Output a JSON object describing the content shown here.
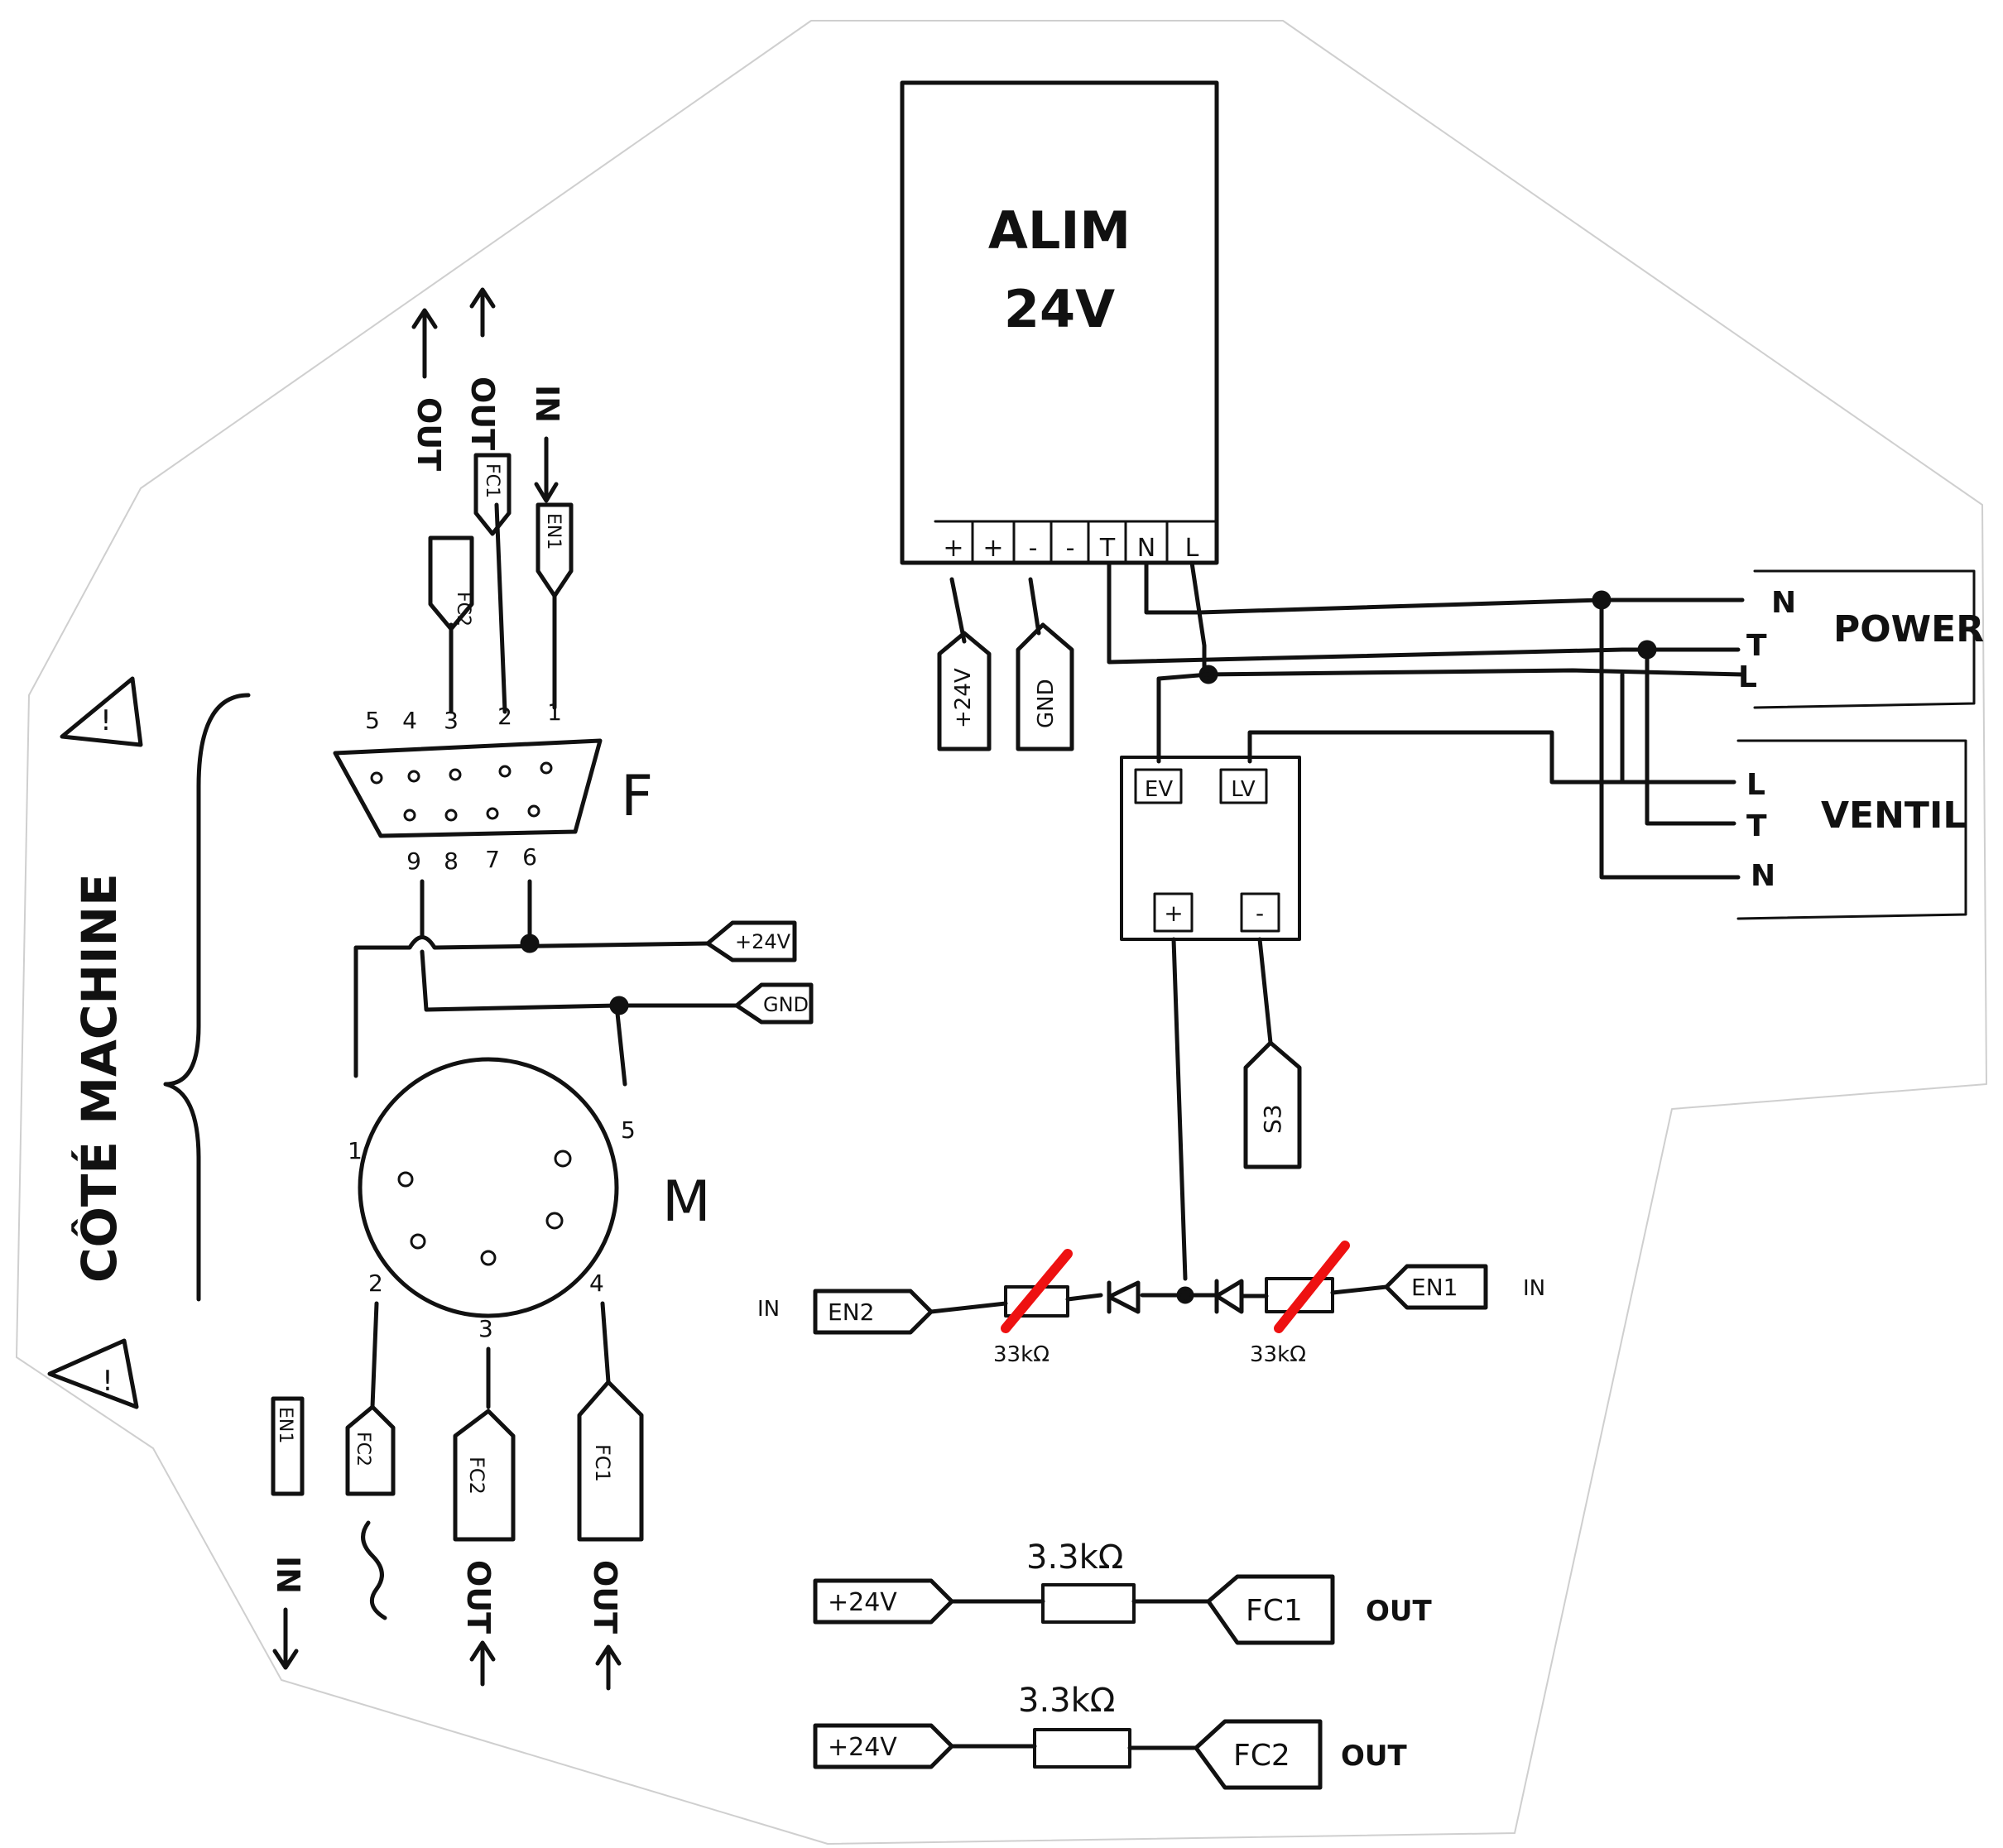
{
  "side_label": {
    "text": "CÔTÉ MACHINE"
  },
  "alim": {
    "line1": "ALIM",
    "line2": "24V",
    "terminals": [
      "+",
      "+",
      "-",
      "-",
      "T",
      "N",
      "L"
    ]
  },
  "alim_tags": {
    "plus24": "+24V",
    "gnd": "GND"
  },
  "mains": {
    "power": {
      "label": "POWER",
      "pins": [
        "N",
        "T",
        "L"
      ]
    },
    "ventil": {
      "label": "VENTIL",
      "pins": [
        "L",
        "T",
        "N"
      ]
    }
  },
  "relay": {
    "top_left": "EV",
    "top_right": "LV",
    "bottom_left": "+",
    "bottom_right": "-",
    "tag": "S3"
  },
  "connector_f": {
    "label": "F",
    "top_pins": [
      "5",
      "4",
      "3",
      "2",
      "1"
    ],
    "bottom_pins": [
      "9",
      "8",
      "7",
      "6"
    ],
    "tags": {
      "plus24": "+24V",
      "gnd": "GND"
    },
    "top_wires": [
      {
        "direction": "OUT",
        "tag": "FC2"
      },
      {
        "direction": "OUT",
        "tag": "FC1"
      },
      {
        "direction": "IN",
        "tag": "EN1"
      }
    ]
  },
  "connector_m": {
    "label": "M",
    "pins": [
      "1",
      "2",
      "3",
      "4",
      "5"
    ],
    "bottom_wires": [
      {
        "direction": "IN",
        "tag": "EN1"
      },
      {
        "direction": "",
        "tag": "FC2"
      },
      {
        "direction": "OUT",
        "tag": "FC2"
      },
      {
        "direction": "OUT",
        "tag": "FC1"
      }
    ]
  },
  "resistor_chain": {
    "left_side": "IN",
    "left_tag": "EN2",
    "r1": "33kΩ",
    "r2": "33kΩ",
    "right_tag": "EN1",
    "right_side": "IN"
  },
  "pullups": [
    {
      "from": "+24V",
      "value": "3.3kΩ",
      "to": "FC1",
      "dir": "OUT"
    },
    {
      "from": "+24V",
      "value": "3.3kΩ",
      "to": "FC2",
      "dir": "OUT"
    }
  ],
  "colors": {
    "ink": "#111111",
    "strike": "#ee1111",
    "paper": "#ffffff"
  }
}
